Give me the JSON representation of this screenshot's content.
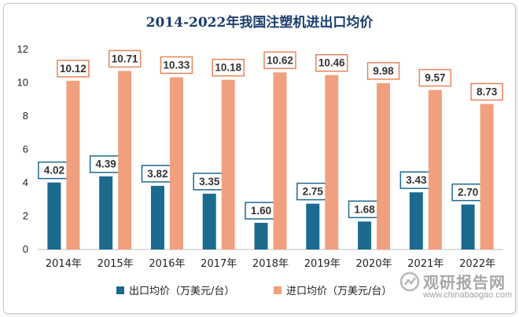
{
  "chart_data": {
    "type": "bar",
    "title": "2014-2022年我国注塑机进出口均价",
    "categories": [
      "2014年",
      "2015年",
      "2016年",
      "2017年",
      "2018年",
      "2019年",
      "2020年",
      "2021年",
      "2022年"
    ],
    "series": [
      {
        "name": "出口均价（万美元/台）",
        "color": "#1d6a8f",
        "values": [
          4.02,
          4.39,
          3.82,
          3.35,
          1.6,
          2.75,
          1.68,
          3.43,
          2.7
        ],
        "labels": [
          "4.02",
          "4.39",
          "3.82",
          "3.35",
          "1.60",
          "2.75",
          "1.68",
          "3.43",
          "2.70"
        ]
      },
      {
        "name": "进口均价（万美元/台）",
        "color": "#f0a07e",
        "values": [
          10.12,
          10.71,
          10.33,
          10.18,
          10.62,
          10.46,
          9.98,
          9.57,
          8.73
        ],
        "labels": [
          "10.12",
          "10.71",
          "10.33",
          "10.18",
          "10.62",
          "10.46",
          "9.98",
          "9.57",
          "8.73"
        ]
      }
    ],
    "ylim": [
      0,
      12
    ],
    "yticks": [
      0,
      2,
      4,
      6,
      8,
      10,
      12
    ],
    "grid": false,
    "legend_position": "bottom",
    "label_border_colors": [
      "#1d6a8f",
      "#e8845a"
    ]
  },
  "watermark": {
    "text_cn": "观研报告网",
    "text_en": "www.chinabaogao.com",
    "icon": "watermark-logo-icon"
  }
}
